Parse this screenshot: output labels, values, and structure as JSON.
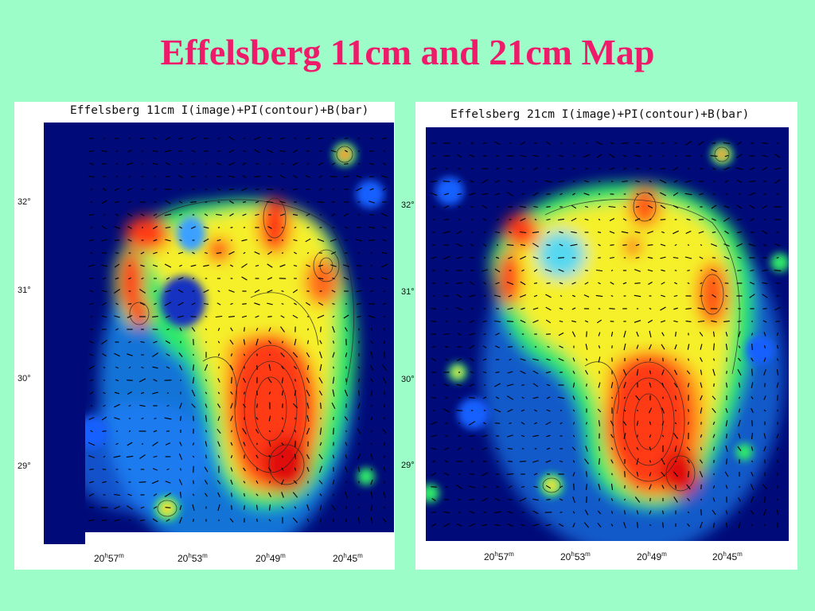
{
  "slide": {
    "title": "Effelsberg 11cm and 21cm Map"
  },
  "colors": {
    "background": "#9dfdc9",
    "title": "#ee1b6a",
    "map_background": "#000a78"
  },
  "panels": [
    {
      "title": "Effelsberg 11cm I(image)+PI(contour)+B(bar)",
      "y_ticks": [
        "32°",
        "31°",
        "30°",
        "29°"
      ],
      "x_ticks": [
        {
          "h": "20",
          "hsup": "h",
          "m": "57",
          "msup": "m"
        },
        {
          "h": "20",
          "hsup": "h",
          "m": "53",
          "msup": "m"
        },
        {
          "h": "20",
          "hsup": "h",
          "m": "49",
          "msup": "m"
        },
        {
          "h": "20",
          "hsup": "h",
          "m": "45",
          "msup": "m"
        }
      ]
    },
    {
      "title": "Effelsberg 21cm I(image)+PI(contour)+B(bar)",
      "y_ticks": [
        "32°",
        "31°",
        "30°",
        "29°"
      ],
      "x_ticks": [
        {
          "h": "20",
          "hsup": "h",
          "m": "57",
          "msup": "m"
        },
        {
          "h": "20",
          "hsup": "h",
          "m": "53",
          "msup": "m"
        },
        {
          "h": "20",
          "hsup": "h",
          "m": "49",
          "msup": "m"
        },
        {
          "h": "20",
          "hsup": "h",
          "m": "45",
          "msup": "m"
        }
      ]
    }
  ]
}
